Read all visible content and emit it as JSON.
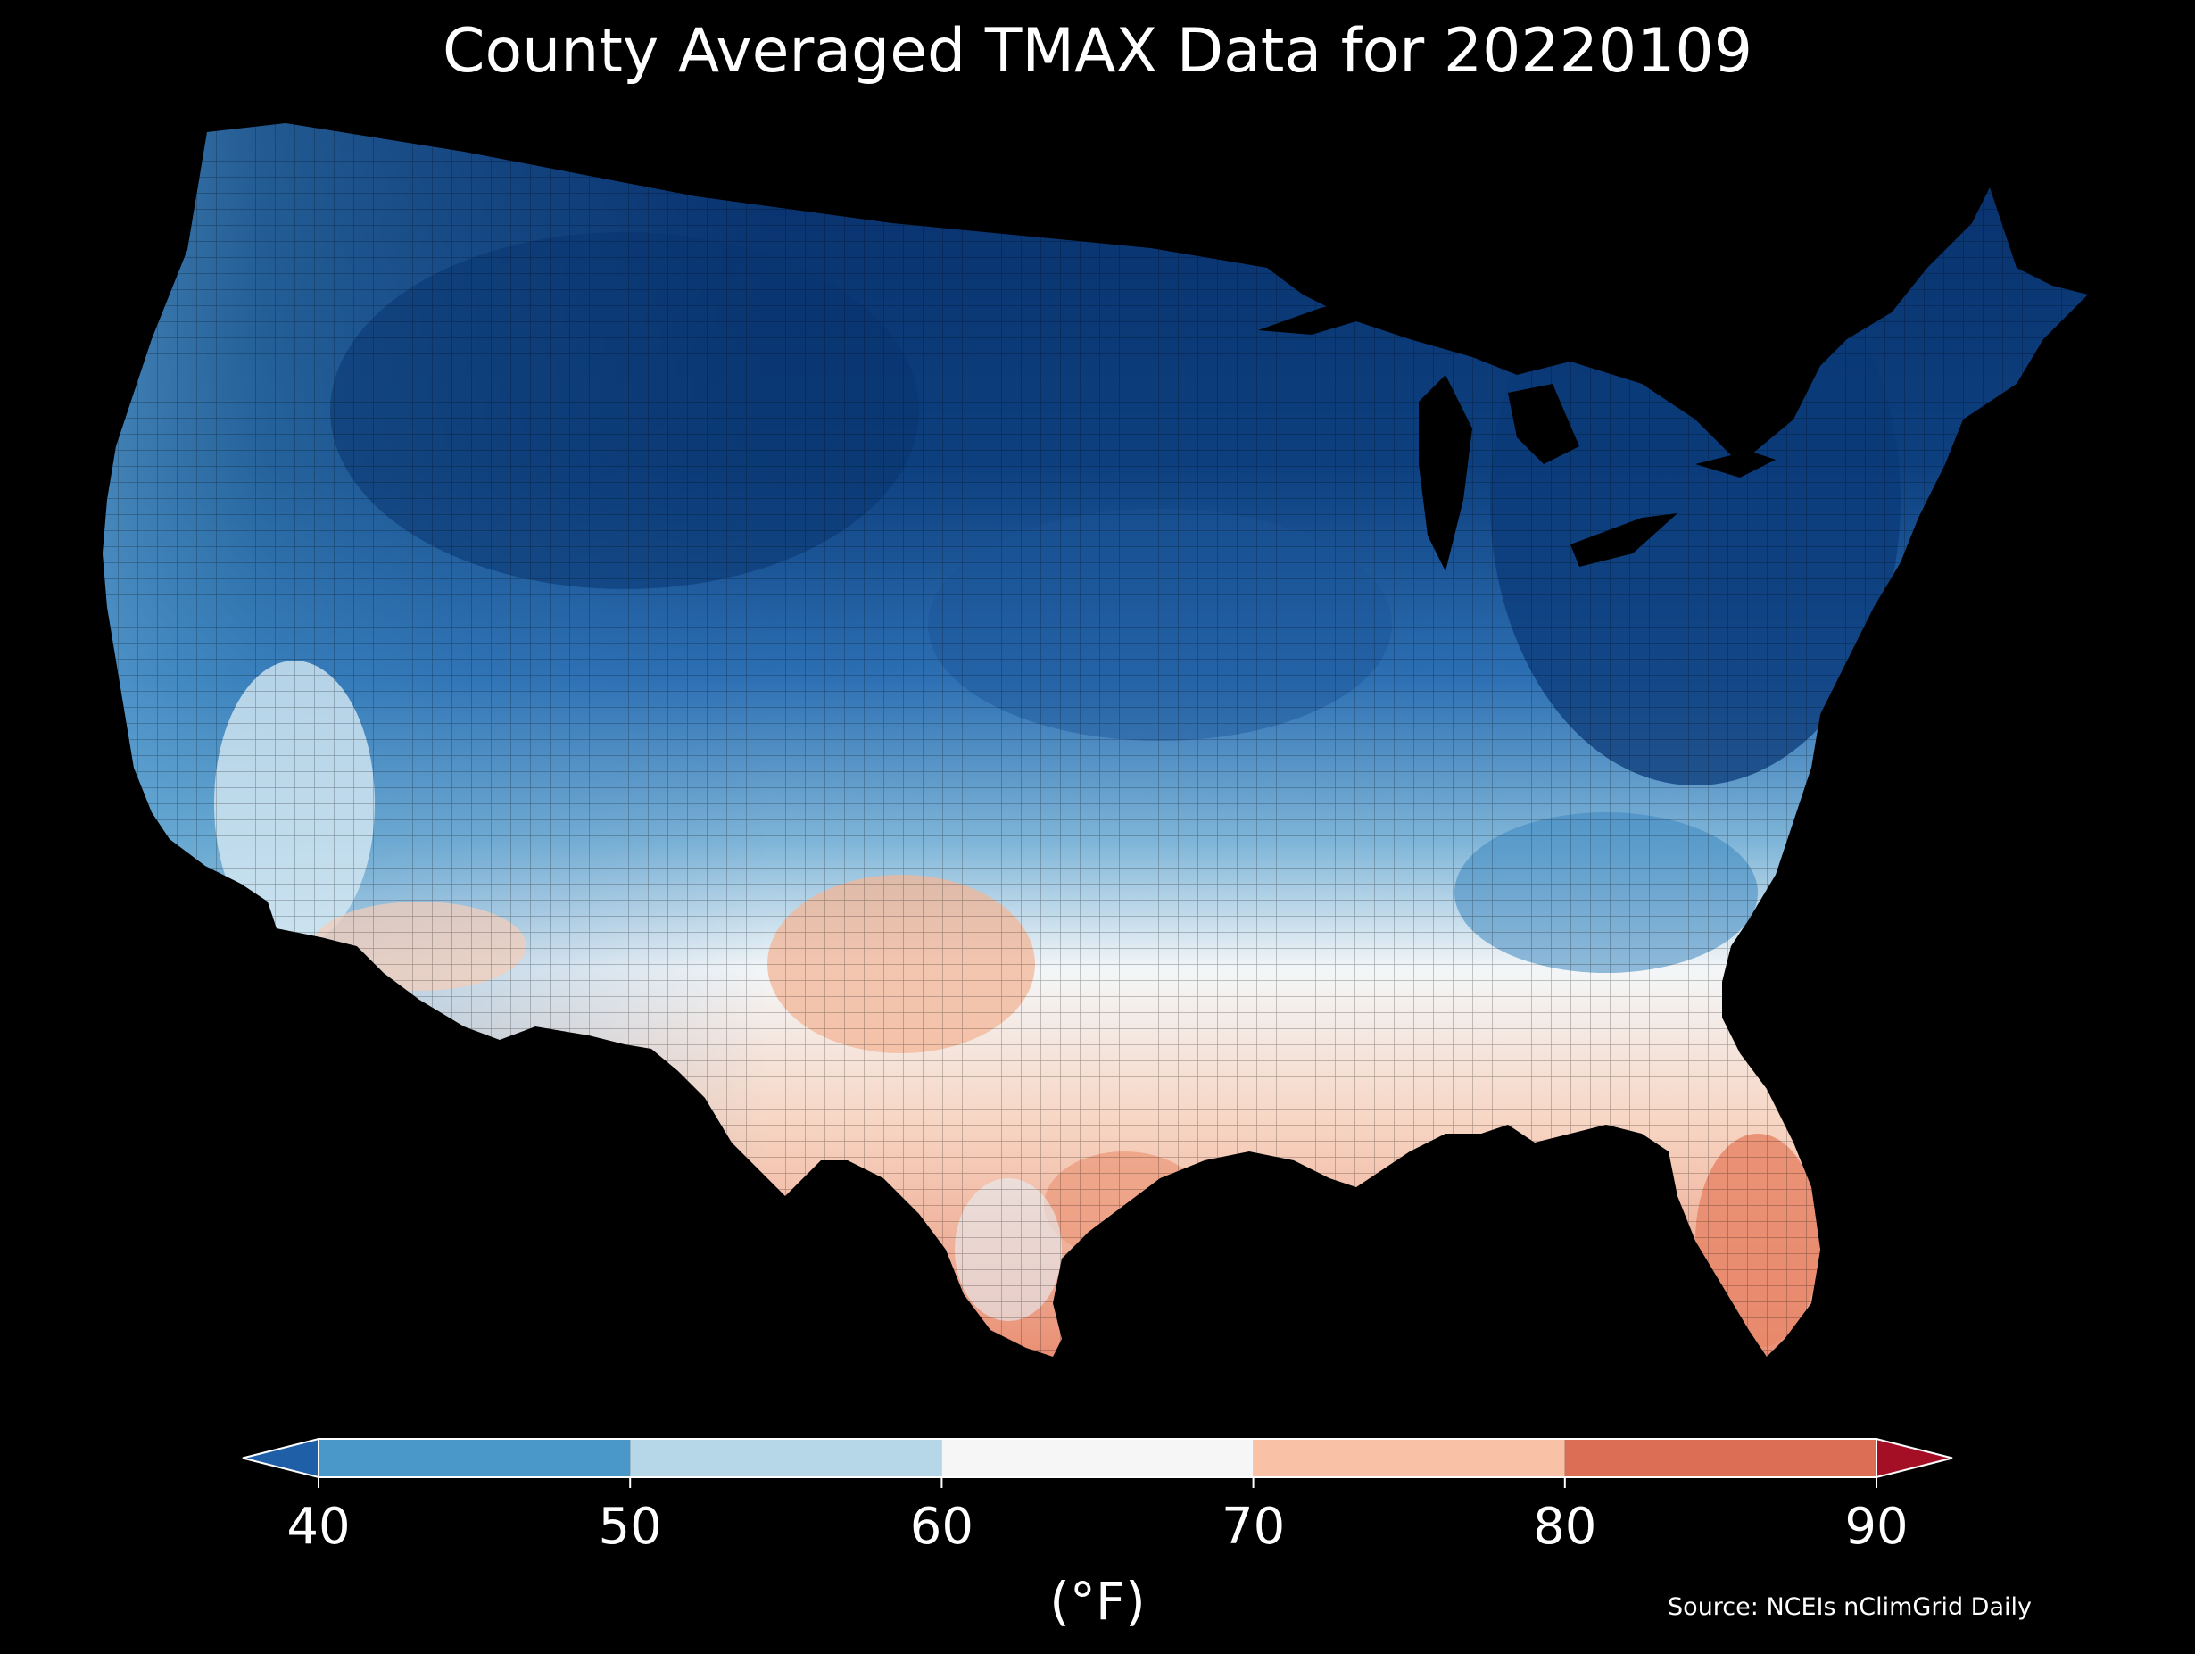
{
  "title": "County Averaged TMAX Data for 20220109",
  "colorbar": {
    "unit_label": "(°F)",
    "ticks": [
      "40",
      "50",
      "60",
      "70",
      "80",
      "90"
    ],
    "bins": [
      {
        "from": 40,
        "to": 50,
        "color": "#4a98c9"
      },
      {
        "from": 50,
        "to": 60,
        "color": "#b6d7e8"
      },
      {
        "from": 60,
        "to": 70,
        "color": "#f6f6f6"
      },
      {
        "from": 70,
        "to": 80,
        "color": "#f9c2a6"
      },
      {
        "from": 80,
        "to": 90,
        "color": "#dc6e56"
      }
    ],
    "under_color": "#1f5fa8",
    "over_color": "#a50f26",
    "extend": "both"
  },
  "source": "Source: NCEIs nClimGrid Daily",
  "map": {
    "region": "Contiguous United States",
    "variable": "TMAX",
    "background": "#000000"
  }
}
